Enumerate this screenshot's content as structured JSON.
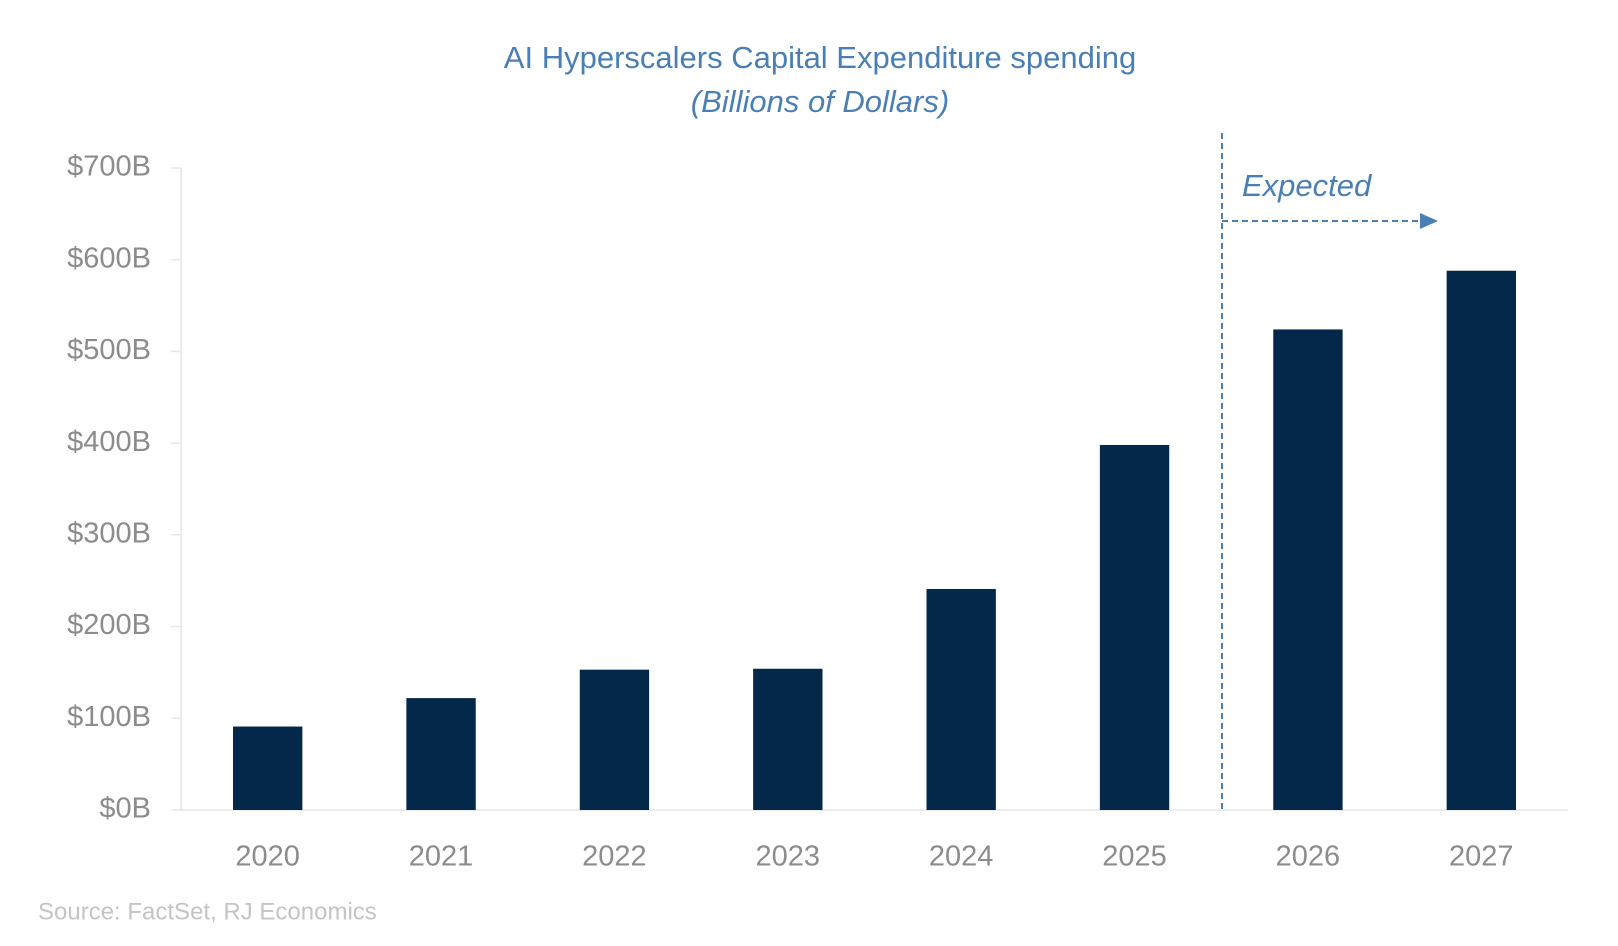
{
  "chart_data": {
    "type": "bar",
    "title": "AI Hyperscalers Capital Expenditure spending",
    "subtitle": "(Billions of Dollars)",
    "categories": [
      "2020",
      "2021",
      "2022",
      "2023",
      "2024",
      "2025",
      "2026",
      "2027"
    ],
    "values": [
      91,
      122,
      153,
      154,
      241,
      398,
      524,
      588
    ],
    "color": "#032849",
    "ylim": [
      0,
      700
    ],
    "yticks": [
      {
        "value": 0,
        "label": "$0B"
      },
      {
        "value": 100,
        "label": "$100B"
      },
      {
        "value": 200,
        "label": "$200B"
      },
      {
        "value": 300,
        "label": "$300B"
      },
      {
        "value": 400,
        "label": "$400B"
      },
      {
        "value": 500,
        "label": "$500B"
      },
      {
        "value": 600,
        "label": "$600B"
      },
      {
        "value": 700,
        "label": "$700B"
      }
    ],
    "grid": false,
    "annotation": "Expected",
    "source": "Source: FactSet, RJ Economics"
  }
}
